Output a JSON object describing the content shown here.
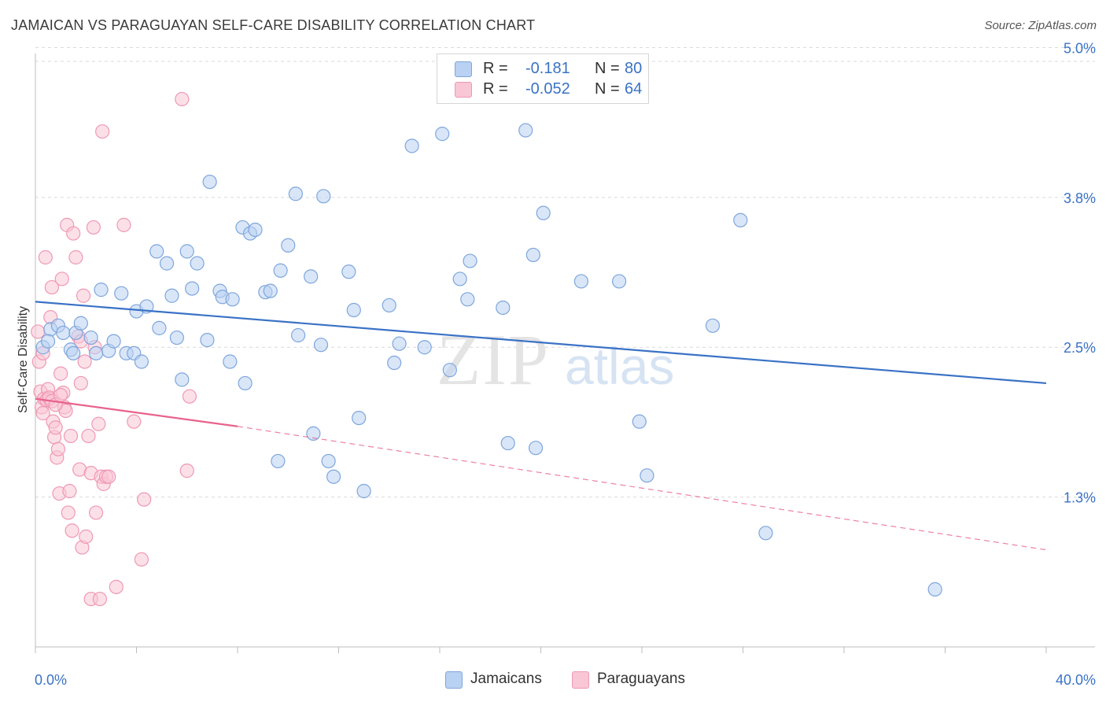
{
  "title": "JAMAICAN VS PARAGUAYAN SELF-CARE DISABILITY CORRELATION CHART",
  "source": "Source: ZipAtlas.com",
  "watermark": {
    "zip": "ZIP",
    "atlas": "atlas"
  },
  "colors": {
    "blue": "#3a72c6",
    "blue_fill": "#b9d1f2",
    "blue_stroke": "#7ea6dc",
    "pink": "#e8628c",
    "pink_fill": "#f9c6d5",
    "pink_stroke": "#ef98b4",
    "grid": "#d9d9d9",
    "axis_text": "#3a72c6"
  },
  "legend_top": [
    {
      "swatch": "blue",
      "r_label": "R =",
      "r_value": "-0.181",
      "n_label": "N =",
      "n_value": "80"
    },
    {
      "swatch": "pink",
      "r_label": "R =",
      "r_value": "-0.052",
      "n_label": "N =",
      "n_value": "64"
    }
  ],
  "legend_bottom": [
    {
      "swatch": "blue",
      "label": "Jamaicans"
    },
    {
      "swatch": "pink",
      "label": "Paraguayans"
    }
  ],
  "chart_data": {
    "type": "scatter",
    "title": "JAMAICAN VS PARAGUAYAN SELF-CARE DISABILITY CORRELATION CHART",
    "xlabel": "",
    "ylabel": "Self-Care Disability",
    "xlim": [
      0,
      40
    ],
    "ylim": [
      0,
      5.2
    ],
    "x_tick_labels": [
      "0.0%",
      "40.0%"
    ],
    "y_ticks": [
      1.25,
      2.5,
      3.75,
      5.0
    ],
    "y_tick_labels": [
      "1.3%",
      "2.5%",
      "3.8%",
      "5.0%"
    ],
    "grid": "horizontal dashed",
    "legend": "top-center",
    "series": [
      {
        "name": "Jamaicans",
        "color": "#3a72c6",
        "trend": {
          "x": [
            0,
            40
          ],
          "y": [
            2.88,
            2.2
          ],
          "style": "solid"
        },
        "points": [
          [
            0.3,
            2.5
          ],
          [
            0.6,
            2.65
          ],
          [
            0.9,
            2.68
          ],
          [
            1.1,
            2.62
          ],
          [
            1.4,
            2.48
          ],
          [
            1.6,
            2.62
          ],
          [
            1.8,
            2.7
          ],
          [
            2.2,
            2.58
          ],
          [
            2.4,
            2.45
          ],
          [
            2.6,
            2.98
          ],
          [
            2.9,
            2.47
          ],
          [
            3.1,
            2.55
          ],
          [
            3.4,
            2.95
          ],
          [
            3.6,
            2.45
          ],
          [
            3.9,
            2.45
          ],
          [
            4.0,
            2.8
          ],
          [
            4.2,
            2.38
          ],
          [
            4.4,
            2.84
          ],
          [
            4.8,
            3.3
          ],
          [
            4.9,
            2.66
          ],
          [
            5.2,
            3.2
          ],
          [
            5.4,
            2.93
          ],
          [
            5.6,
            2.58
          ],
          [
            5.8,
            2.23
          ],
          [
            6.0,
            3.3
          ],
          [
            6.2,
            2.99
          ],
          [
            6.4,
            3.2
          ],
          [
            6.8,
            2.56
          ],
          [
            6.9,
            3.88
          ],
          [
            7.3,
            2.97
          ],
          [
            7.4,
            2.92
          ],
          [
            7.7,
            2.38
          ],
          [
            7.8,
            2.9
          ],
          [
            8.2,
            3.5
          ],
          [
            8.3,
            2.2
          ],
          [
            8.5,
            3.45
          ],
          [
            8.7,
            3.48
          ],
          [
            9.1,
            2.96
          ],
          [
            9.3,
            2.97
          ],
          [
            9.6,
            1.55
          ],
          [
            9.7,
            3.14
          ],
          [
            10.0,
            3.35
          ],
          [
            10.3,
            3.78
          ],
          [
            10.4,
            2.6
          ],
          [
            10.9,
            3.09
          ],
          [
            11.0,
            1.78
          ],
          [
            11.3,
            2.52
          ],
          [
            11.4,
            3.76
          ],
          [
            11.6,
            1.55
          ],
          [
            11.8,
            1.42
          ],
          [
            12.4,
            3.13
          ],
          [
            12.6,
            2.81
          ],
          [
            12.8,
            1.91
          ],
          [
            13.0,
            1.3
          ],
          [
            14.0,
            2.85
          ],
          [
            14.2,
            2.37
          ],
          [
            14.4,
            2.53
          ],
          [
            14.9,
            4.18
          ],
          [
            15.4,
            2.5
          ],
          [
            16.1,
            4.28
          ],
          [
            16.4,
            2.31
          ],
          [
            16.8,
            3.07
          ],
          [
            17.1,
            2.9
          ],
          [
            17.2,
            3.22
          ],
          [
            18.5,
            2.83
          ],
          [
            18.7,
            1.7
          ],
          [
            19.4,
            4.31
          ],
          [
            19.7,
            3.27
          ],
          [
            19.8,
            1.66
          ],
          [
            20.1,
            3.62
          ],
          [
            21.6,
            3.05
          ],
          [
            23.1,
            3.05
          ],
          [
            23.9,
            1.88
          ],
          [
            24.2,
            1.43
          ],
          [
            26.8,
            2.68
          ],
          [
            27.9,
            3.56
          ],
          [
            28.9,
            0.95
          ],
          [
            35.6,
            0.48
          ],
          [
            0.5,
            2.55
          ],
          [
            1.5,
            2.45
          ]
        ]
      },
      {
        "name": "Paraguayans",
        "color": "#e8628c",
        "trend": {
          "x": [
            0,
            8.0
          ],
          "y": [
            2.07,
            1.84
          ],
          "style": "solid",
          "extended": {
            "x": [
              8.0,
              40
            ],
            "y": [
              1.84,
              0.81
            ],
            "style": "dashed"
          }
        },
        "points": [
          [
            0.1,
            2.63
          ],
          [
            0.15,
            2.38
          ],
          [
            0.2,
            2.13
          ],
          [
            0.25,
            2.0
          ],
          [
            0.3,
            1.95
          ],
          [
            0.35,
            2.07
          ],
          [
            0.4,
            3.25
          ],
          [
            0.5,
            2.15
          ],
          [
            0.55,
            2.07
          ],
          [
            0.6,
            2.75
          ],
          [
            0.65,
            3.0
          ],
          [
            0.7,
            1.88
          ],
          [
            0.75,
            1.75
          ],
          [
            0.8,
            1.83
          ],
          [
            0.85,
            1.58
          ],
          [
            0.9,
            1.65
          ],
          [
            0.95,
            1.28
          ],
          [
            1.0,
            2.28
          ],
          [
            1.05,
            3.07
          ],
          [
            1.1,
            2.12
          ],
          [
            1.15,
            2.0
          ],
          [
            1.2,
            1.97
          ],
          [
            1.25,
            3.52
          ],
          [
            1.3,
            1.12
          ],
          [
            1.35,
            1.3
          ],
          [
            1.4,
            1.76
          ],
          [
            1.45,
            0.97
          ],
          [
            1.5,
            3.45
          ],
          [
            1.6,
            3.25
          ],
          [
            1.7,
            2.59
          ],
          [
            1.75,
            1.48
          ],
          [
            1.8,
            2.2
          ],
          [
            1.85,
            0.83
          ],
          [
            1.9,
            2.93
          ],
          [
            1.95,
            2.38
          ],
          [
            2.0,
            0.92
          ],
          [
            2.1,
            1.76
          ],
          [
            2.2,
            1.45
          ],
          [
            2.2,
            0.4
          ],
          [
            2.3,
            3.5
          ],
          [
            2.35,
            2.5
          ],
          [
            2.4,
            1.12
          ],
          [
            2.5,
            1.86
          ],
          [
            2.55,
            0.4
          ],
          [
            2.6,
            1.42
          ],
          [
            2.65,
            4.3
          ],
          [
            2.7,
            1.36
          ],
          [
            2.8,
            1.42
          ],
          [
            2.9,
            1.42
          ],
          [
            3.2,
            0.5
          ],
          [
            3.5,
            3.52
          ],
          [
            3.9,
            1.88
          ],
          [
            4.2,
            0.73
          ],
          [
            4.3,
            1.23
          ],
          [
            5.8,
            4.57
          ],
          [
            6.0,
            1.47
          ],
          [
            6.1,
            2.09
          ],
          [
            0.45,
            2.06
          ],
          [
            0.55,
            2.08
          ],
          [
            0.65,
            2.05
          ],
          [
            0.8,
            2.02
          ],
          [
            1.0,
            2.1
          ],
          [
            1.8,
            2.55
          ],
          [
            0.3,
            2.45
          ]
        ]
      }
    ]
  }
}
